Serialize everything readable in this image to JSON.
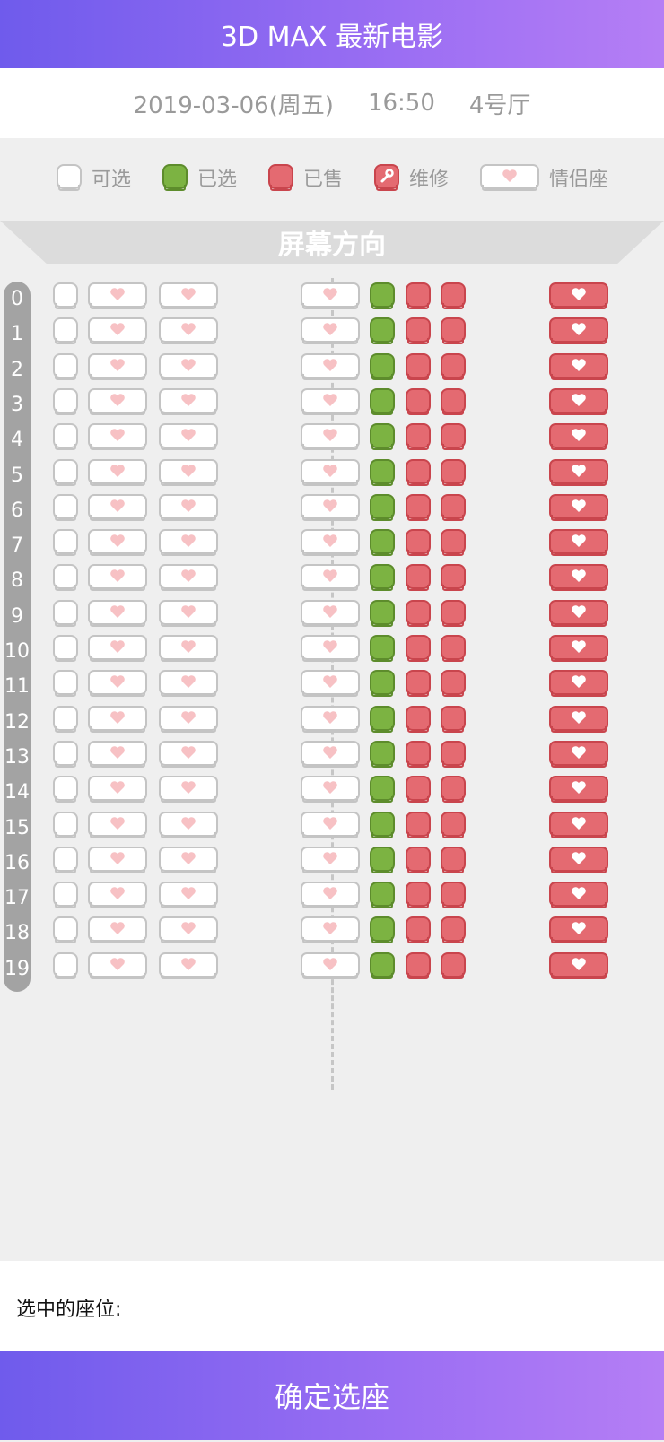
{
  "header": {
    "title": "3D MAX 最新电影"
  },
  "info": {
    "date": "2019-03-06(周五)",
    "time": "16:50",
    "hall": "4号厅"
  },
  "legend": [
    {
      "type": "available",
      "label": "可选"
    },
    {
      "type": "selected",
      "label": "已选"
    },
    {
      "type": "sold",
      "label": "已售"
    },
    {
      "type": "repair",
      "label": "维修",
      "icon": "wrench-icon"
    },
    {
      "type": "couple",
      "label": "情侣座",
      "icon": "heart-icon"
    }
  ],
  "screen": {
    "label": "屏幕方向"
  },
  "rows": [
    "0",
    "1",
    "2",
    "3",
    "4",
    "5",
    "6",
    "7",
    "8",
    "9",
    "10",
    "11",
    "12",
    "13",
    "14",
    "15",
    "16",
    "17",
    "18",
    "19"
  ],
  "row_pattern": [
    "available",
    "couple-available",
    "couple-available",
    "couple-available",
    "selected",
    "sold",
    "sold",
    "couple-sold"
  ],
  "colors": {
    "available": "#ffffff",
    "selected": "#7cb342",
    "sold": "#e46a71",
    "couple_heart": "#f7c1c4",
    "accent": "#7b61ef"
  },
  "footer": {
    "selected_label": "选中的座位:",
    "confirm_label": "确定选座"
  }
}
